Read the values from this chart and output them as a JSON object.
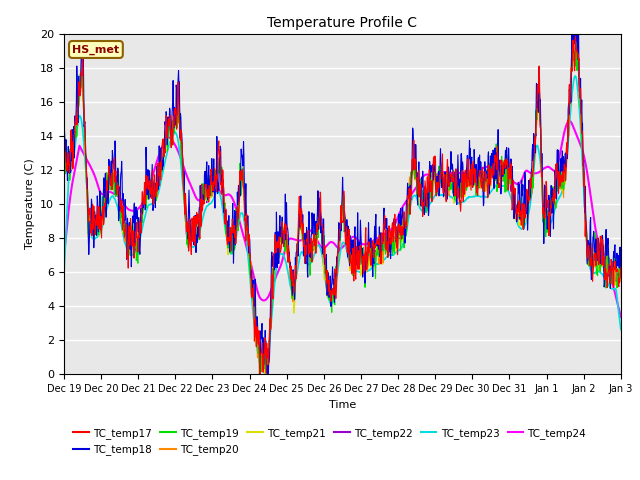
{
  "title": "Temperature Profile C",
  "xlabel": "Time",
  "ylabel": "Temperature (C)",
  "ylim": [
    0,
    20
  ],
  "annotation": "HS_met",
  "background_color": "#e8e8e8",
  "series_colors": {
    "TC_temp17": "#ff0000",
    "TC_temp18": "#0000dd",
    "TC_temp19": "#00dd00",
    "TC_temp20": "#ff8800",
    "TC_temp21": "#dddd00",
    "TC_temp22": "#9900cc",
    "TC_temp23": "#00dddd",
    "TC_temp24": "#ff00ff"
  },
  "xtick_labels": [
    "Dec 19",
    "Dec 20",
    "Dec 21",
    "Dec 22",
    "Dec 23",
    "Dec 24",
    "Dec 25",
    "Dec 26",
    "Dec 27",
    "Dec 28",
    "Dec 29",
    "Dec 30",
    "Dec 31",
    "Jan 1",
    "Jan 2",
    "Jan 3"
  ],
  "num_points": 1440,
  "seed": 42
}
